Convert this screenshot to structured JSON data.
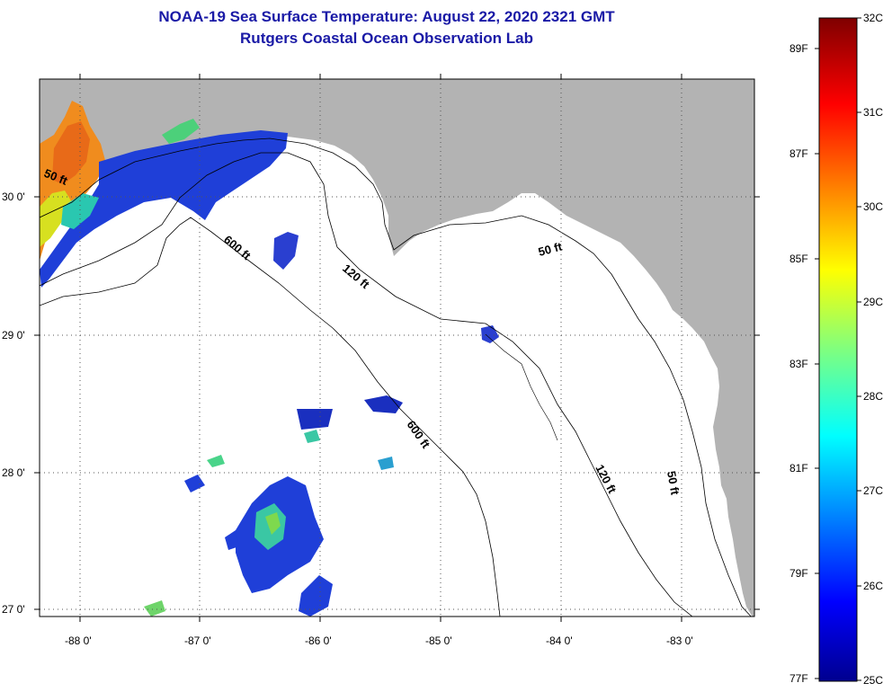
{
  "header": {
    "title_line1": "NOAA-19 Sea Surface Temperature:  August 22, 2020 2321 GMT",
    "title_line2": "Rutgers Coastal Ocean Observation Lab"
  },
  "map": {
    "lon_ticks": [
      "-88 0'",
      "-87 0'",
      "-86 0'",
      "-85 0'",
      "-84 0'",
      "-83 0'"
    ],
    "lat_ticks": [
      "30 0'",
      "29 0'",
      "28 0'",
      "27 0'"
    ],
    "contour_labels": [
      "50 ft",
      "600 ft",
      "120 ft",
      "50 ft",
      "600 ft",
      "120 ft",
      "50 ft"
    ],
    "colors": {
      "land": "#b3b3b3",
      "water_nodata": "#ffffff",
      "grid": "#555555"
    }
  },
  "colorbar": {
    "celsius_labels": [
      "32C",
      "31C",
      "30C",
      "29C",
      "28C",
      "27C",
      "26C",
      "25C"
    ],
    "fahrenheit_labels": [
      "89F",
      "87F",
      "85F",
      "83F",
      "81F",
      "79F",
      "77F"
    ]
  }
}
